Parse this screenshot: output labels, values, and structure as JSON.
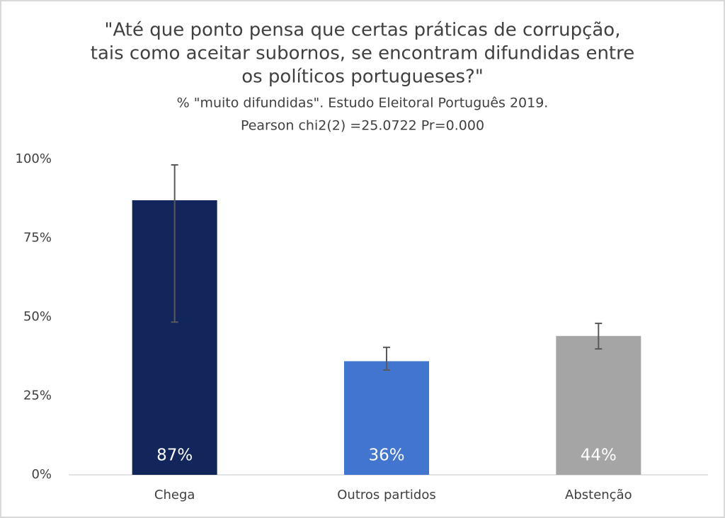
{
  "chart_data": {
    "type": "bar",
    "title": [
      "\"Até que ponto pensa que certas práticas de corrupção,",
      "tais como aceitar subornos, se encontram difundidas entre",
      "os políticos portugueses?\""
    ],
    "subtitle": [
      "% \"muito difundidas\". Estudo Eleitoral Português 2019.",
      "Pearson chi2(2)  =25.0722 Pr=0.000"
    ],
    "categories": [
      "Chega",
      "Outros partidos",
      "Abstenção"
    ],
    "values": [
      87,
      36,
      44
    ],
    "value_labels": [
      "87%",
      "36%",
      "44%"
    ],
    "ci_low": [
      48.4,
      33.2,
      39.9
    ],
    "ci_high": [
      98.2,
      40.4,
      48
    ],
    "colors": [
      "#13265c",
      "#4275d0",
      "#a5a5a5"
    ],
    "ylim": [
      0,
      100
    ],
    "yticks": [
      {
        "value": 0,
        "label": "0%"
      },
      {
        "value": 25,
        "label": "25%"
      },
      {
        "value": 50,
        "label": "50%"
      },
      {
        "value": 75,
        "label": "75%"
      },
      {
        "value": 100,
        "label": "100%"
      }
    ],
    "grid": false
  }
}
